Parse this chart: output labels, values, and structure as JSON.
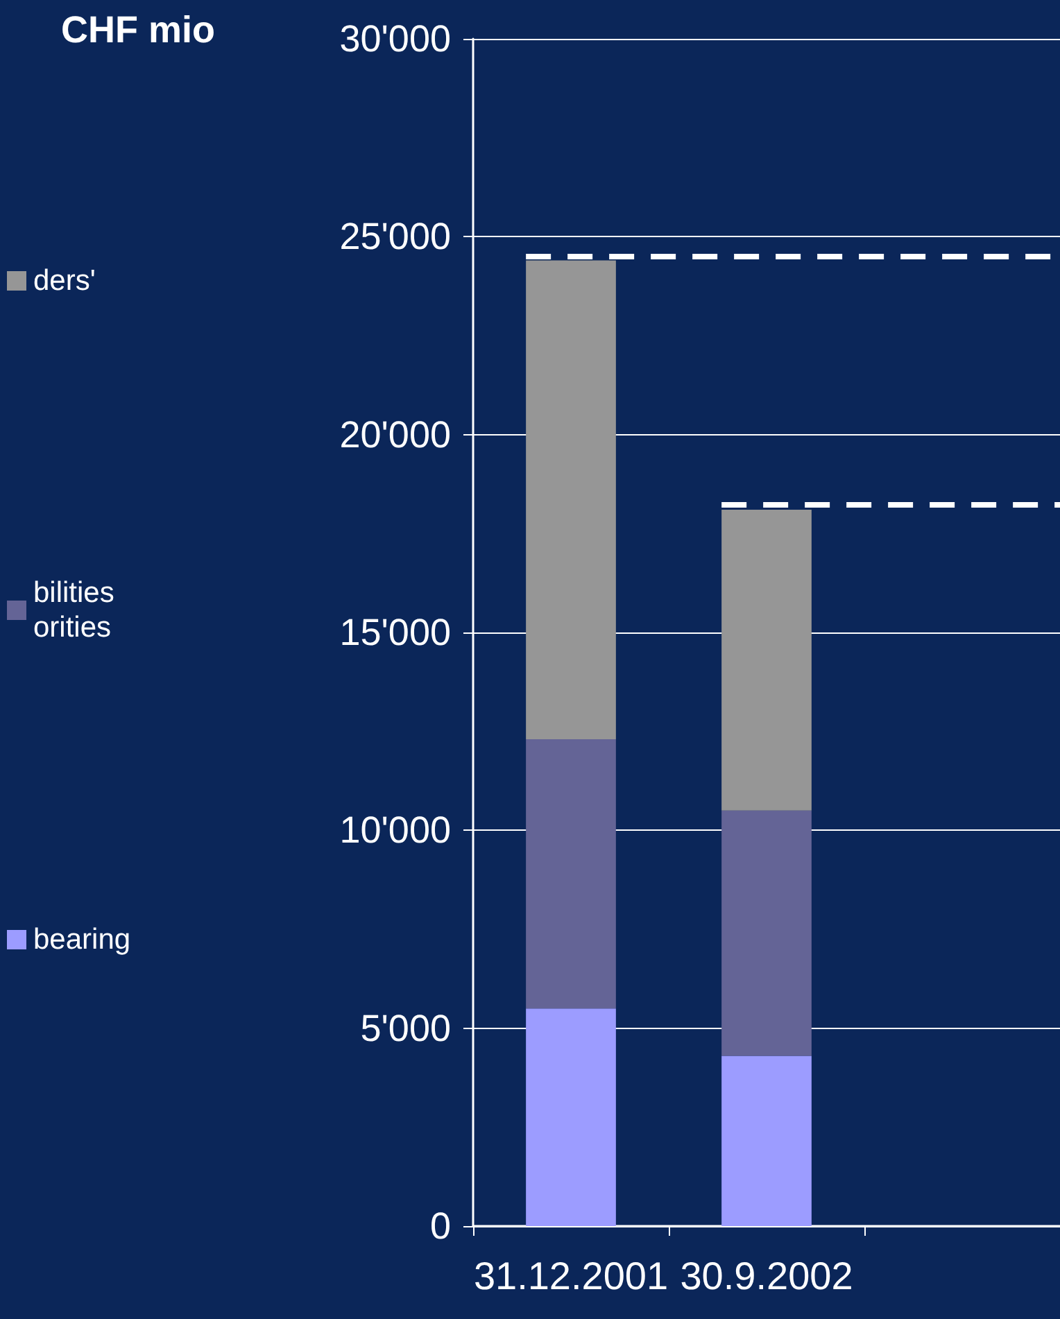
{
  "chart_data": {
    "type": "bar",
    "ylabel": "CHF mio",
    "categories": [
      "31.12.2001",
      "30.9.2002"
    ],
    "series": [
      {
        "name": "bearing",
        "color": "#9c9cff",
        "values": [
          5500,
          4300
        ]
      },
      {
        "name": "bilities\norities",
        "color": "#646496",
        "values": [
          6800,
          6200
        ]
      },
      {
        "name": "ders'",
        "color": "#969696",
        "values": [
          12100,
          7600
        ]
      }
    ],
    "stacked": true,
    "ylim": [
      0,
      30000
    ],
    "yticks": [
      0,
      {
        "value": 5000,
        "label": "5'000"
      },
      {
        "value": 10000,
        "label": "10'000"
      },
      {
        "value": 15000,
        "label": "15'000"
      },
      {
        "value": 20000,
        "label": "20'000"
      },
      {
        "value": 25000,
        "label": "25'000"
      },
      {
        "value": 30000,
        "label": "30'000"
      }
    ],
    "grid": "y",
    "legend": "left",
    "ref_lines": [
      {
        "axis": "y",
        "value": 24500,
        "color": "#ffffff",
        "line_style": "dashed"
      },
      {
        "axis": "y",
        "value": 18250,
        "color": "#ffffff",
        "line_style": "dashed"
      }
    ]
  }
}
